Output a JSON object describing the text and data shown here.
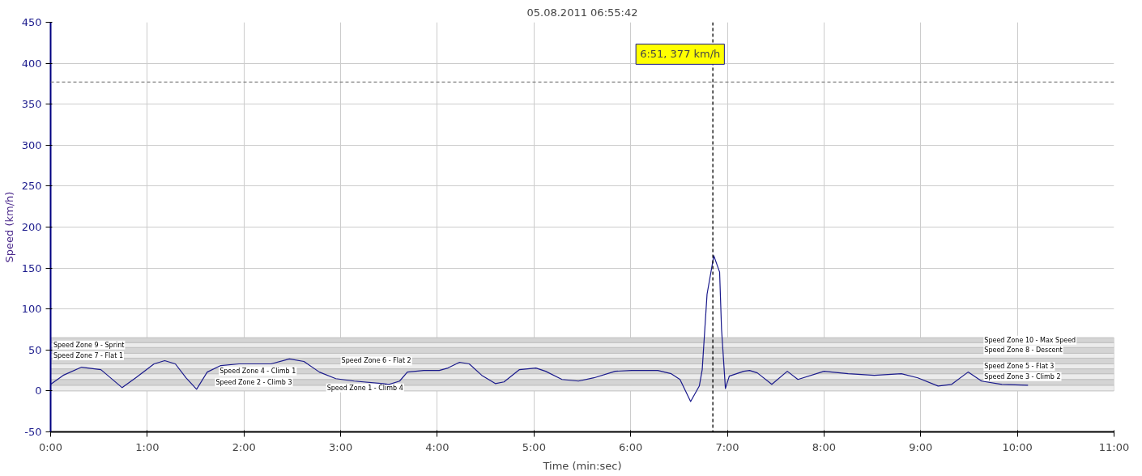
{
  "chart_data": {
    "type": "line",
    "title": "05.08.2011 06:55:42",
    "xlabel": "Time (min:sec)",
    "ylabel": "Speed (km/h)",
    "xlim": [
      0,
      11
    ],
    "xticks": [
      {
        "value": 0,
        "label": "0:00"
      },
      {
        "value": 1,
        "label": "1:00"
      },
      {
        "value": 2,
        "label": "2:00"
      },
      {
        "value": 3,
        "label": "3:00"
      },
      {
        "value": 4,
        "label": "4:00"
      },
      {
        "value": 5,
        "label": "5:00"
      },
      {
        "value": 6,
        "label": "6:00"
      },
      {
        "value": 7,
        "label": "7:00"
      },
      {
        "value": 8,
        "label": "8:00"
      },
      {
        "value": 9,
        "label": "9:00"
      },
      {
        "value": 10,
        "label": "10:00"
      },
      {
        "value": 11,
        "label": "11:00"
      }
    ],
    "ylim": [
      -50,
      450
    ],
    "yticks": [
      -50,
      0,
      50,
      100,
      150,
      200,
      250,
      300,
      350,
      400,
      450
    ],
    "grid": true,
    "marker": "none",
    "line_style": "solid",
    "series": [
      {
        "color": "#1a1a8c",
        "x": [
          0.0,
          0.13,
          0.32,
          0.52,
          0.74,
          0.88,
          1.07,
          1.18,
          1.29,
          1.4,
          1.51,
          1.62,
          1.76,
          1.95,
          2.18,
          2.28,
          2.47,
          2.62,
          2.78,
          2.95,
          3.14,
          3.44,
          3.5,
          3.61,
          3.69,
          3.86,
          4.02,
          4.11,
          4.23,
          4.33,
          4.46,
          4.6,
          4.69,
          4.85,
          5.02,
          5.12,
          5.29,
          5.46,
          5.62,
          5.84,
          6.01,
          6.28,
          6.42,
          6.51,
          6.62,
          6.71,
          6.74,
          6.79,
          6.86,
          6.92,
          6.94,
          6.98,
          7.02,
          7.17,
          7.23,
          7.31,
          7.46,
          7.62,
          7.73,
          8.0,
          8.25,
          8.52,
          8.8,
          8.97,
          9.18,
          9.32,
          9.49,
          9.63,
          9.84,
          10.11
        ],
        "values": [
          8,
          19,
          29,
          26,
          4,
          16,
          33,
          37,
          33,
          16,
          2,
          23,
          31,
          33,
          33,
          33,
          39,
          36,
          23,
          15,
          12,
          9,
          8,
          12,
          23,
          25,
          25,
          28,
          35,
          33,
          19,
          9,
          11,
          26,
          28,
          24,
          14,
          12,
          16,
          24,
          25,
          25,
          21,
          14,
          -13,
          6,
          26,
          118,
          165,
          145,
          75,
          3,
          18,
          24,
          25,
          22,
          8,
          24,
          14,
          24,
          21,
          19,
          21,
          16,
          6,
          8,
          23,
          12,
          8,
          7
        ]
      }
    ],
    "ref_lines": [
      {
        "axis": "y",
        "value": 377,
        "color": "#808080",
        "line_style": "dashed"
      },
      {
        "axis": "x",
        "value": 6.85,
        "color": "#000000",
        "line_style": "dashed"
      }
    ],
    "bands": [
      {
        "axis": "y",
        "from": 0,
        "to": 7,
        "label": "Speed Zone 1 - Climb 4",
        "color": "#ececec"
      },
      {
        "axis": "y",
        "from": 7,
        "to": 14,
        "label": "Speed Zone 2 - Climb 3",
        "color": "#d4d4d4"
      },
      {
        "axis": "y",
        "from": 14,
        "to": 21,
        "label": "Speed Zone 3 - Climb 2",
        "color": "#ececec"
      },
      {
        "axis": "y",
        "from": 21,
        "to": 27,
        "label": "Speed Zone 4 - Climb 1",
        "color": "#d4d4d4"
      },
      {
        "axis": "y",
        "from": 27,
        "to": 33,
        "label": "Speed Zone 5 - Flat 3",
        "color": "#ececec"
      },
      {
        "axis": "y",
        "from": 33,
        "to": 40,
        "label": "Speed Zone 6 - Flat 2",
        "color": "#d4d4d4"
      },
      {
        "axis": "y",
        "from": 40,
        "to": 46,
        "label": "Speed Zone 7 - Flat 1",
        "color": "#ececec"
      },
      {
        "axis": "y",
        "from": 46,
        "to": 53,
        "label": "Speed Zone 8 - Descent",
        "color": "#d4d4d4"
      },
      {
        "axis": "y",
        "from": 53,
        "to": 59,
        "label": "Speed Zone 9 - Sprint",
        "color": "#ececec"
      },
      {
        "axis": "y",
        "from": 59,
        "to": 65,
        "label": "Speed Zone 10 - Max Speed",
        "color": "#d4d4d4"
      }
    ],
    "annotations": [
      {
        "text": "6:51, 377 km/h",
        "x": 6.85,
        "y": 377
      }
    ]
  }
}
